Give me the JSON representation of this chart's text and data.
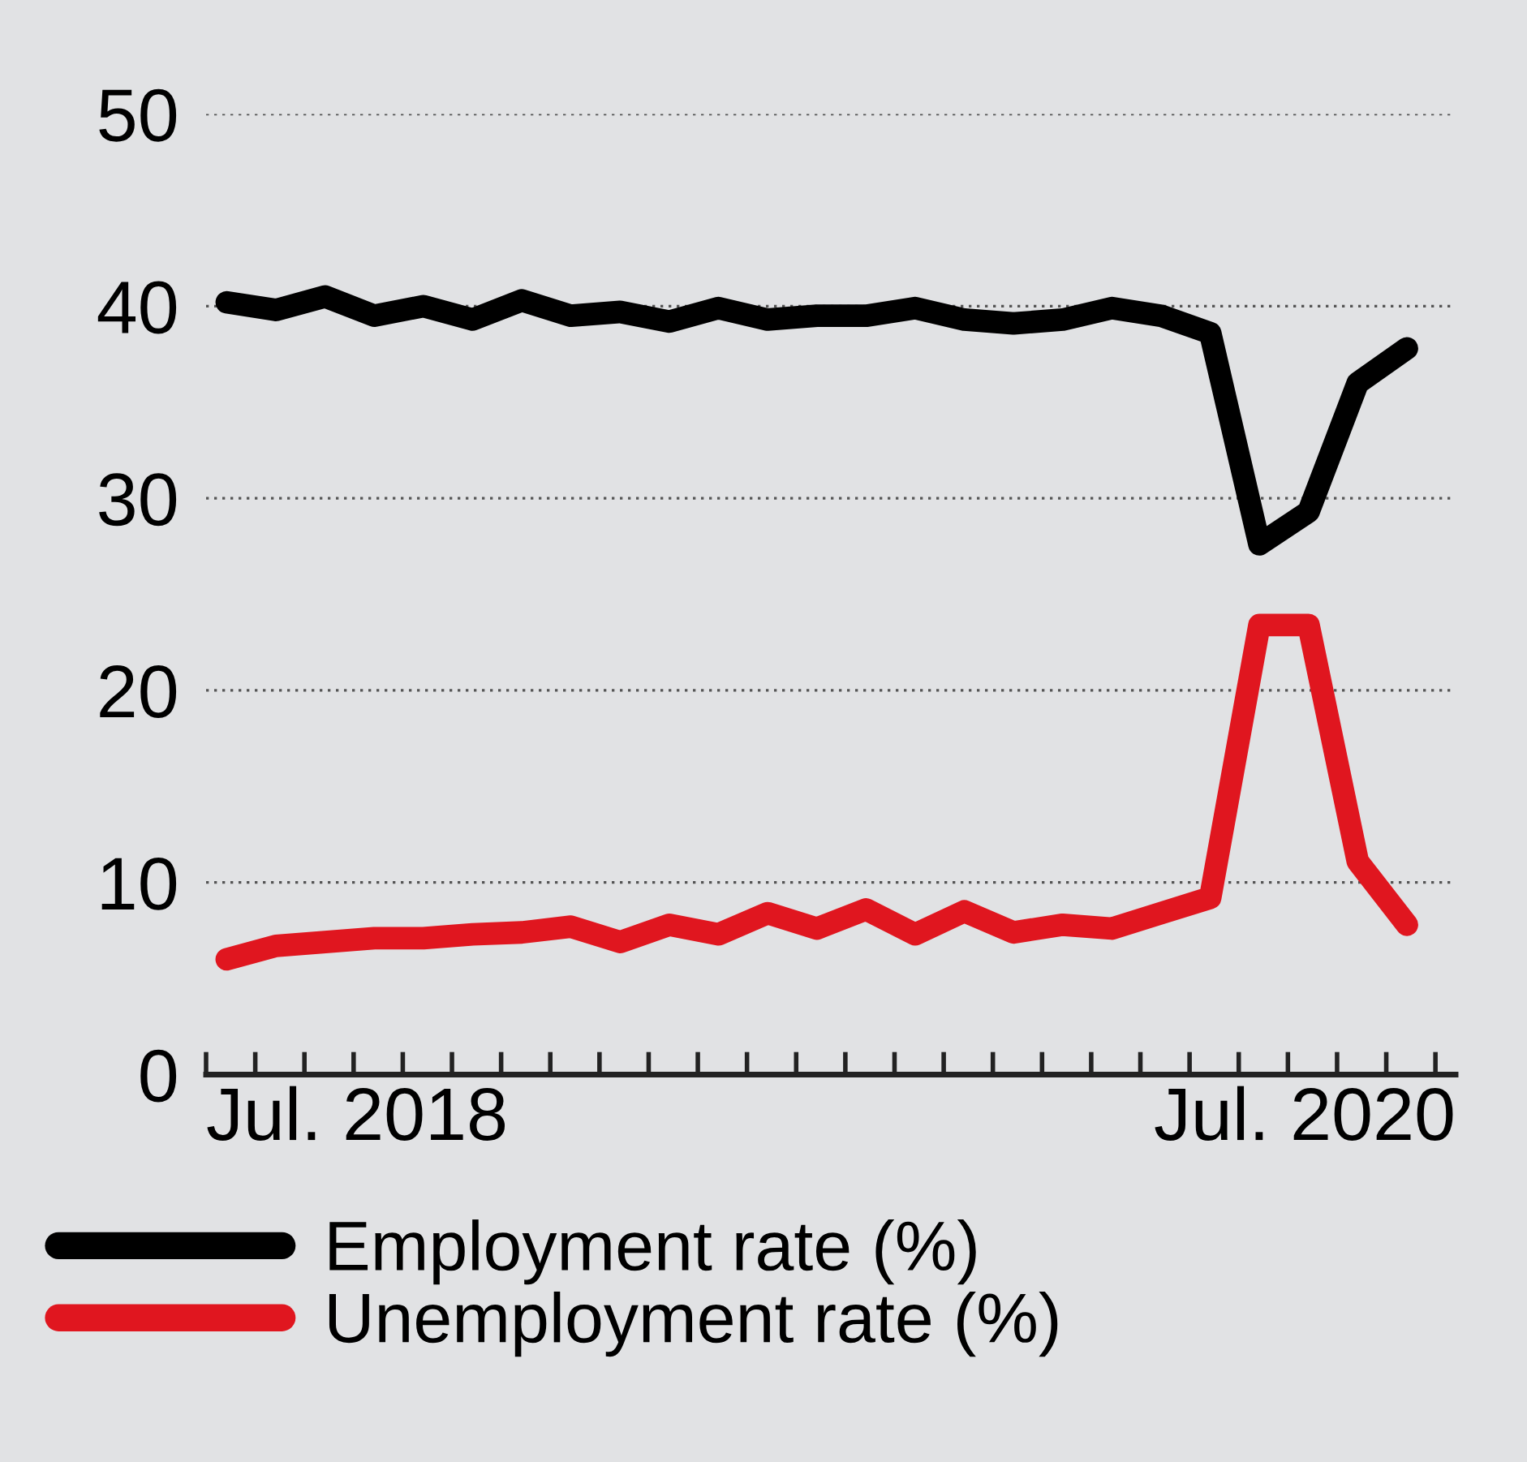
{
  "chart_data": {
    "type": "line",
    "categories": [
      null,
      null,
      null,
      null,
      null,
      null,
      null,
      null,
      null,
      null,
      null,
      null,
      null,
      null,
      null,
      null,
      null,
      null,
      null,
      null,
      null,
      null,
      null,
      null,
      null
    ],
    "annotations": [
      "Jul. 2018",
      "Jul. 2020"
    ],
    "series": [
      {
        "name": "Employment rate (%)",
        "color": "#000000",
        "values": [
          40.2,
          39.8,
          40.5,
          39.5,
          40.0,
          39.3,
          40.3,
          39.5,
          39.7,
          39.2,
          39.9,
          39.3,
          39.5,
          39.5,
          39.9,
          39.3,
          39.1,
          39.3,
          39.9,
          39.5,
          38.6,
          27.6,
          29.3,
          36.0,
          37.8
        ]
      },
      {
        "name": "Unemployment rate (%)",
        "color": "#e0161f",
        "values": [
          6.0,
          6.7,
          6.9,
          7.1,
          7.1,
          7.3,
          7.4,
          7.7,
          6.9,
          7.8,
          7.3,
          8.4,
          7.6,
          8.6,
          7.3,
          8.5,
          7.4,
          7.8,
          7.6,
          8.4,
          9.2,
          23.4,
          23.4,
          11.1,
          7.8
        ]
      }
    ],
    "ylim": [
      0,
      50
    ],
    "yticks": [
      0,
      10,
      20,
      30,
      40,
      50
    ],
    "grid": "y",
    "legend": "bottom",
    "marker": "none",
    "line_style": "solid"
  }
}
